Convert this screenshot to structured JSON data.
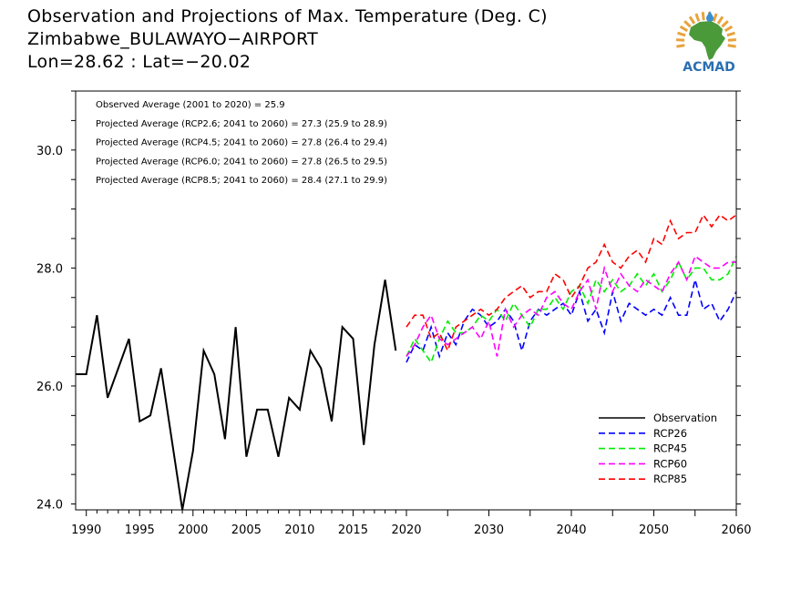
{
  "title": {
    "line1": "Observation and Projections of Max. Temperature (Deg. C)",
    "line2": "Zimbabwe_BULAWAYO−AIRPORT",
    "line3": "Lon=28.62 : Lat=−20.02"
  },
  "logo": {
    "text": "ACMAD",
    "icon": "africa-map-logo",
    "colors": {
      "africa": "#4a9a3a",
      "rays": "#e8a33c",
      "drop": "#3a8fd0",
      "text": "#2a6fb0"
    }
  },
  "chart_data": {
    "type": "line",
    "xlim": [
      1989,
      2060
    ],
    "ylim": [
      23.9,
      31.0
    ],
    "x_ticks": [
      1990,
      1995,
      2000,
      2005,
      2010,
      2015,
      2020,
      2030,
      2040,
      2050,
      2060
    ],
    "x_tick_labels": [
      "1990",
      "1995",
      "2000",
      "2005",
      "2010",
      "2015",
      "2020",
      "2030",
      "2040",
      "2050",
      "2060"
    ],
    "y_ticks": [
      24.0,
      26.0,
      28.0,
      30.0
    ],
    "y_tick_labels": [
      "24.0",
      "26.0",
      "28.0",
      "30.0"
    ],
    "annotations": [
      "Observed Average (2001 to 2020) = 25.9",
      "Projected Average (RCP2.6; 2041 to 2060) = 27.3 (25.9 to 28.9)",
      "Projected Average (RCP4.5; 2041 to 2060) = 27.8 (26.4 to 29.4)",
      "Projected Average (RCP6.0; 2041 to 2060) = 27.8 (26.5 to 29.5)",
      "Projected Average (RCP8.5; 2041 to 2060) = 28.4 (27.1 to 29.9)"
    ],
    "legend_position": "bottom-right",
    "series": [
      {
        "name": "Observation",
        "color": "#000000",
        "dash": "solid",
        "x": [
          1989,
          1990,
          1991,
          1992,
          1993,
          1994,
          1995,
          1996,
          1997,
          1998,
          1999,
          2000,
          2001,
          2002,
          2003,
          2004,
          2005,
          2006,
          2007,
          2008,
          2009,
          2010,
          2011,
          2012,
          2013,
          2014,
          2015,
          2016,
          2017,
          2018,
          2019
        ],
        "values": [
          26.2,
          26.2,
          27.2,
          25.8,
          26.3,
          26.8,
          25.4,
          25.5,
          26.3,
          25.1,
          23.9,
          24.9,
          26.6,
          26.2,
          25.1,
          27.0,
          24.8,
          25.6,
          25.6,
          24.8,
          25.8,
          25.6,
          26.6,
          26.3,
          25.4,
          27.0,
          26.8,
          25.0,
          26.7,
          27.8,
          26.6
        ]
      },
      {
        "name": "RCP26",
        "color": "#0000ff",
        "dash": "dashed",
        "x": [
          2020,
          2021,
          2022,
          2023,
          2024,
          2025,
          2026,
          2027,
          2028,
          2029,
          2030,
          2031,
          2032,
          2033,
          2034,
          2035,
          2036,
          2037,
          2038,
          2039,
          2040,
          2041,
          2042,
          2043,
          2044,
          2045,
          2046,
          2047,
          2048,
          2049,
          2050,
          2051,
          2052,
          2053,
          2054,
          2055,
          2056,
          2057,
          2058,
          2059,
          2060
        ],
        "values": [
          26.4,
          26.7,
          26.6,
          27.0,
          26.5,
          26.9,
          26.7,
          27.1,
          27.3,
          27.2,
          27.0,
          27.1,
          27.3,
          27.1,
          26.6,
          27.1,
          27.3,
          27.2,
          27.3,
          27.4,
          27.2,
          27.6,
          27.1,
          27.3,
          26.9,
          27.6,
          27.1,
          27.4,
          27.3,
          27.2,
          27.3,
          27.2,
          27.5,
          27.2,
          27.2,
          27.8,
          27.3,
          27.4,
          27.1,
          27.3,
          27.6
        ]
      },
      {
        "name": "RCP45",
        "color": "#00ee00",
        "dash": "dashed",
        "x": [
          2020,
          2021,
          2022,
          2023,
          2024,
          2025,
          2026,
          2027,
          2028,
          2029,
          2030,
          2031,
          2032,
          2033,
          2034,
          2035,
          2036,
          2037,
          2038,
          2039,
          2040,
          2041,
          2042,
          2043,
          2044,
          2045,
          2046,
          2047,
          2048,
          2049,
          2050,
          2051,
          2052,
          2053,
          2054,
          2055,
          2056,
          2057,
          2058,
          2059,
          2060
        ],
        "values": [
          26.5,
          26.8,
          26.6,
          26.4,
          26.8,
          27.1,
          26.9,
          26.9,
          27.0,
          27.2,
          27.1,
          27.3,
          27.1,
          27.4,
          27.2,
          27.0,
          27.3,
          27.3,
          27.5,
          27.3,
          27.6,
          27.7,
          27.4,
          27.8,
          27.6,
          27.8,
          27.6,
          27.7,
          27.9,
          27.7,
          27.9,
          27.6,
          27.8,
          28.1,
          27.8,
          28.0,
          28.0,
          27.8,
          27.8,
          27.9,
          28.2
        ]
      },
      {
        "name": "RCP60",
        "color": "#ff00ff",
        "dash": "dashed",
        "x": [
          2020,
          2021,
          2022,
          2023,
          2024,
          2025,
          2026,
          2027,
          2028,
          2029,
          2030,
          2031,
          2032,
          2033,
          2034,
          2035,
          2036,
          2037,
          2038,
          2039,
          2040,
          2041,
          2042,
          2043,
          2044,
          2045,
          2046,
          2047,
          2048,
          2049,
          2050,
          2051,
          2052,
          2053,
          2054,
          2055,
          2056,
          2057,
          2058,
          2059,
          2060
        ],
        "values": [
          26.5,
          26.7,
          27.0,
          27.2,
          26.8,
          26.7,
          26.8,
          26.9,
          27.0,
          26.8,
          27.1,
          26.5,
          27.3,
          27.0,
          27.2,
          27.3,
          27.2,
          27.5,
          27.6,
          27.4,
          27.3,
          27.6,
          27.8,
          27.3,
          28.0,
          27.6,
          27.9,
          27.7,
          27.6,
          27.8,
          27.7,
          27.6,
          27.9,
          28.1,
          27.8,
          28.2,
          28.1,
          28.0,
          28.0,
          28.1,
          28.1
        ]
      },
      {
        "name": "RCP85",
        "color": "#ff0000",
        "dash": "dashed",
        "x": [
          2020,
          2021,
          2022,
          2023,
          2024,
          2025,
          2026,
          2027,
          2028,
          2029,
          2030,
          2031,
          2032,
          2033,
          2034,
          2035,
          2036,
          2037,
          2038,
          2039,
          2040,
          2041,
          2042,
          2043,
          2044,
          2045,
          2046,
          2047,
          2048,
          2049,
          2050,
          2051,
          2052,
          2053,
          2054,
          2055,
          2056,
          2057,
          2058,
          2059,
          2060
        ],
        "values": [
          27.0,
          27.2,
          27.2,
          26.8,
          26.9,
          26.6,
          27.0,
          27.1,
          27.2,
          27.3,
          27.2,
          27.3,
          27.5,
          27.6,
          27.7,
          27.5,
          27.6,
          27.6,
          27.9,
          27.8,
          27.5,
          27.7,
          28.0,
          28.1,
          28.4,
          28.1,
          28.0,
          28.2,
          28.3,
          28.1,
          28.5,
          28.4,
          28.8,
          28.5,
          28.6,
          28.6,
          28.9,
          28.7,
          28.9,
          28.8,
          28.9
        ]
      }
    ]
  }
}
